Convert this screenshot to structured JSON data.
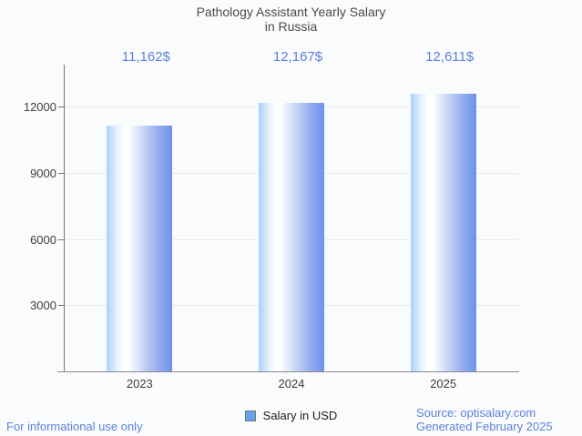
{
  "page": {
    "background": "#fafbfd",
    "title_color": "#4b4b4b",
    "link_color": "#5c81d9"
  },
  "title": {
    "line1": "Pathology Assistant Yearly Salary",
    "line2": "in Russia"
  },
  "chart_data": {
    "type": "bar",
    "categories": [
      "2023",
      "2024",
      "2025"
    ],
    "values": [
      11162,
      12167,
      12611
    ],
    "value_labels": [
      "11,162$",
      "12,167$",
      "12,611$"
    ],
    "series": [
      {
        "name": "Salary in USD",
        "values": [
          11162,
          12167,
          12611
        ]
      }
    ],
    "title": "Pathology Assistant Yearly Salary in Russia",
    "xlabel": "",
    "ylabel": "",
    "ylim": [
      0,
      13920
    ],
    "yticks": [
      3000,
      6000,
      9000,
      12000
    ],
    "grid": true,
    "legend_position": "bottom",
    "colors": {
      "bar_gradient_left": "#a9d0fb",
      "bar_gradient_mid": "#ffffff",
      "bar_gradient_right": "#6e92ea",
      "value_label": "#5c81d9",
      "axis_line": "#757575",
      "gridline": "#e8e8e8",
      "tick_label": "#404040",
      "category_label": "#3c3c3c",
      "legend_marker_fill": "#64a1ef",
      "legend_marker_border": "#767676"
    }
  },
  "legend": {
    "label": "Salary in USD"
  },
  "footer": {
    "left": "For informational use only",
    "source": "Source: optisalary.com",
    "generated": "Generated February 2025"
  }
}
